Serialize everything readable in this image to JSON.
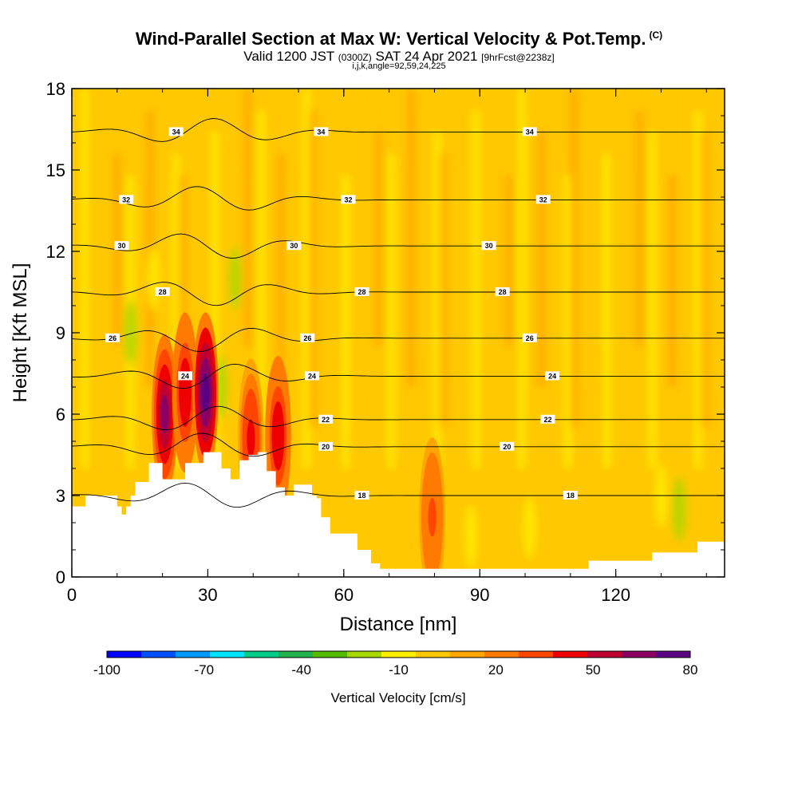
{
  "header": {
    "title": "Wind-Parallel Section at Max W: Vertical Velocity & Pot.Temp.",
    "title_unit": "(C)",
    "valid_prefix": "Valid 1200 JST",
    "valid_zulu": "(0300Z)",
    "valid_date": "SAT 24 Apr 2021",
    "forecast": "[9hrFcst@2238z]",
    "indices": "i,j,k,angle=92,59,24,225"
  },
  "chart_data": {
    "type": "heatmap",
    "xlabel": "Distance [nm]",
    "ylabel": "Height [Kft MSL]",
    "xlim": [
      0,
      144
    ],
    "ylim": [
      0,
      18
    ],
    "x_ticks": [
      0,
      30,
      60,
      90,
      120
    ],
    "y_ticks": [
      0,
      3,
      6,
      9,
      12,
      15,
      18
    ],
    "colorbar": {
      "title": "Vertical Velocity [cm/s]",
      "labels": [
        "-100",
        "-70",
        "-40",
        "-10",
        "20",
        "50",
        "80"
      ],
      "label_values": [
        -100,
        -70,
        -40,
        -10,
        20,
        50,
        80
      ],
      "colors": [
        "#0000ff",
        "#0050ff",
        "#0099ff",
        "#00e5ff",
        "#00cc88",
        "#22b14c",
        "#55bb00",
        "#a6d800",
        "#ffee00",
        "#ffc800",
        "#ffa500",
        "#ff7a00",
        "#ff4500",
        "#ee0000",
        "#c00030",
        "#8b0060",
        "#5b0080"
      ]
    },
    "terrain": [
      [
        0,
        2.6
      ],
      [
        3,
        3.0
      ],
      [
        9,
        3.0
      ],
      [
        10,
        2.6
      ],
      [
        11,
        2.3
      ],
      [
        12,
        2.6
      ],
      [
        13,
        3.0
      ],
      [
        14,
        3.5
      ],
      [
        15,
        3.5
      ],
      [
        17,
        4.2
      ],
      [
        19,
        4.2
      ],
      [
        20,
        3.6
      ],
      [
        23,
        3.6
      ],
      [
        25,
        4.2
      ],
      [
        27,
        4.2
      ],
      [
        29,
        4.6
      ],
      [
        31,
        4.6
      ],
      [
        33,
        4.0
      ],
      [
        35,
        3.6
      ],
      [
        37,
        4.3
      ],
      [
        39,
        4.5
      ],
      [
        41,
        4.6
      ],
      [
        43,
        3.9
      ],
      [
        45,
        3.3
      ],
      [
        47,
        3.0
      ],
      [
        48,
        3.0
      ],
      [
        49,
        3.4
      ],
      [
        51,
        3.4
      ],
      [
        53,
        3.0
      ],
      [
        54,
        2.9
      ],
      [
        55,
        2.2
      ],
      [
        57,
        1.6
      ],
      [
        60,
        1.6
      ],
      [
        63,
        1.0
      ],
      [
        66,
        0.5
      ],
      [
        68,
        0.3
      ],
      [
        113,
        0.3
      ],
      [
        114,
        0.6
      ],
      [
        128,
        0.9
      ],
      [
        138,
        1.3
      ],
      [
        144,
        1.3
      ]
    ],
    "theta_contours": [
      {
        "label": "34",
        "y": 16.4,
        "label_x": [
          23,
          55,
          101
        ]
      },
      {
        "label": "32",
        "y": 13.9,
        "label_x": [
          12,
          61,
          104
        ]
      },
      {
        "label": "30",
        "y": 12.2,
        "label_x": [
          11,
          49,
          92
        ]
      },
      {
        "label": "28",
        "y": 10.5,
        "label_x": [
          20,
          64,
          95
        ]
      },
      {
        "label": "26",
        "y": 8.8,
        "label_x": [
          9,
          52,
          101
        ]
      },
      {
        "label": "24",
        "y": 7.4,
        "label_x": [
          25,
          53,
          106
        ]
      },
      {
        "label": "22",
        "y": 5.8,
        "label_x": [
          56,
          105
        ]
      },
      {
        "label": "20",
        "y": 4.8,
        "label_x": [
          56,
          96
        ]
      },
      {
        "label": "18",
        "y": 3.0,
        "label_x": [
          64,
          110
        ]
      }
    ],
    "updrafts": [
      {
        "x": 20.5,
        "y": 6.0,
        "peak": 60
      },
      {
        "x": 25.0,
        "y": 6.8,
        "peak": 45
      },
      {
        "x": 29.5,
        "y": 6.8,
        "peak": 80
      },
      {
        "x": 39.5,
        "y": 5.1,
        "peak": 40
      },
      {
        "x": 45.5,
        "y": 5.2,
        "peak": 45
      },
      {
        "x": 79.5,
        "y": 2.2,
        "peak": 30
      }
    ]
  }
}
